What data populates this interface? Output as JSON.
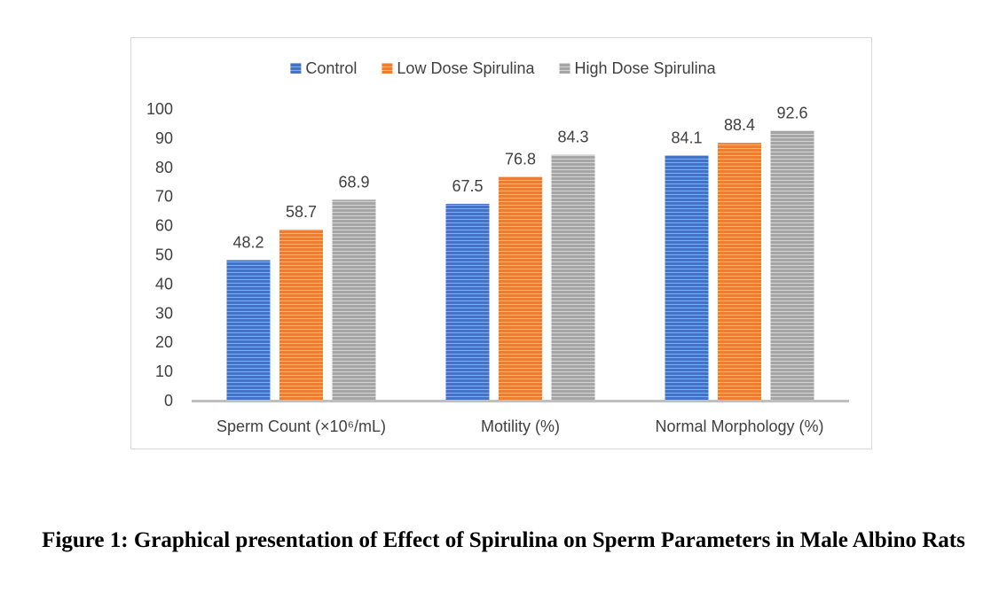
{
  "chart_data": {
    "type": "bar",
    "title": "",
    "xlabel": "",
    "ylabel": "",
    "categories": [
      "Sperm Count (×10⁶/mL)",
      "Motility (%)",
      "Normal Morphology (%)"
    ],
    "series": [
      {
        "name": "Control",
        "values": [
          48.2,
          67.5,
          84.1
        ],
        "color": "#4472C4"
      },
      {
        "name": "Low Dose Spirulina",
        "values": [
          58.7,
          76.8,
          88.4
        ],
        "color": "#ED7D31"
      },
      {
        "name": "High Dose Spirulina",
        "values": [
          68.9,
          84.3,
          92.6
        ],
        "color": "#A5A5A5"
      }
    ],
    "data_labels": [
      [
        "48.2",
        "67.5",
        "84.1"
      ],
      [
        "58.7",
        "76.8",
        "88.4"
      ],
      [
        "68.9",
        "84.3",
        "92.6"
      ]
    ],
    "ylim": [
      0,
      100
    ],
    "yticks": [
      "0",
      "10",
      "20",
      "30",
      "40",
      "50",
      "60",
      "70",
      "80",
      "90",
      "100"
    ],
    "grid": false,
    "legend_position": "top-center"
  },
  "caption": "Figure 1: Graphical presentation of Effect of Spirulina on Sperm Parameters in Male Albino Rats"
}
